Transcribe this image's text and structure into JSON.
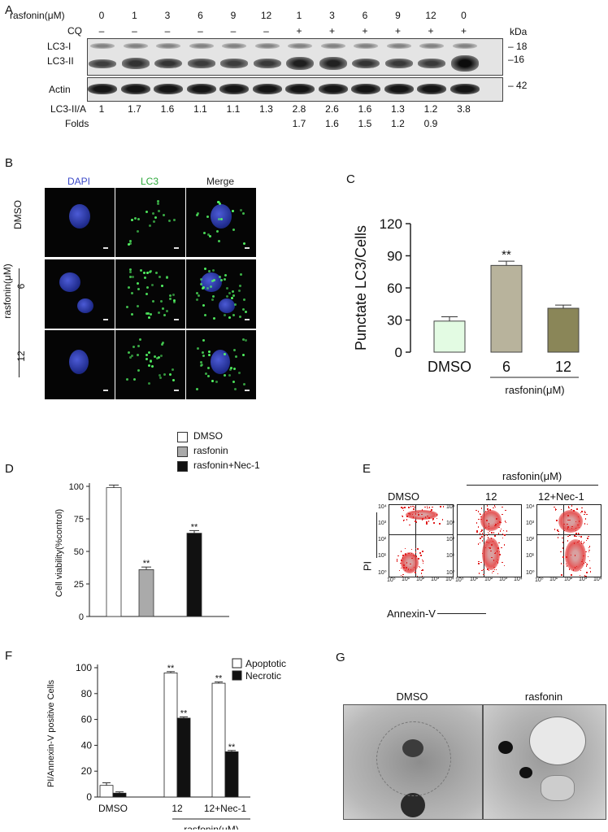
{
  "panels": {
    "a": "A",
    "b": "B",
    "c": "C",
    "d": "D",
    "e": "E",
    "f": "F",
    "g": "G"
  },
  "panelA": {
    "rasfonin_label": "rasfonin(μM)",
    "conc": [
      "0",
      "1",
      "3",
      "6",
      "9",
      "12",
      "1",
      "3",
      "6",
      "9",
      "12",
      "0"
    ],
    "cq_label": "CQ",
    "cq": [
      "–",
      "–",
      "–",
      "–",
      "–",
      "–",
      "+",
      "+",
      "+",
      "+",
      "+",
      "+"
    ],
    "kda_label": "kDa",
    "lc3i_label": "LC3-I",
    "lc3ii_label": "LC3-II",
    "actin_label": "Actin",
    "mw": [
      "18",
      "16",
      "42"
    ],
    "ratio_label": "LC3-II/A",
    "ratios": [
      "1",
      "1.7",
      "1.6",
      "1.1",
      "1.1",
      "1.3",
      "2.8",
      "2.6",
      "1.6",
      "1.3",
      "1.2",
      "3.8"
    ],
    "folds_label": "Folds",
    "folds": [
      "1.7",
      "1.6",
      "1.5",
      "1.2",
      "0.9"
    ]
  },
  "panelB": {
    "cols": [
      "DAPI",
      "LC3",
      "Merge"
    ],
    "rows": [
      "DMSO",
      "6",
      "12"
    ],
    "group_label": "rasfonin(μM)",
    "col_colors": [
      "#3b49c8",
      "#2faa3c",
      "#222222"
    ]
  },
  "panelC": {
    "chart_data": {
      "type": "bar",
      "categories": [
        "DMSO",
        "6",
        "12"
      ],
      "values": [
        29,
        81,
        41
      ],
      "errors": [
        4,
        4,
        3
      ],
      "colors": [
        "#e3fbe3",
        "#b8b39c",
        "#8a8658"
      ],
      "ylabel": "Punctate LC3/Cells",
      "ylim": [
        0,
        120
      ],
      "yticks": [
        "0",
        "30",
        "60",
        "90",
        "120"
      ],
      "significance": [
        "",
        "**",
        ""
      ],
      "group_label": "rasfonin(μM)"
    }
  },
  "panelD": {
    "legend": [
      {
        "label": "DMSO",
        "color": "#ffffff"
      },
      {
        "label": "rasfonin",
        "color": "#aaaaaa"
      },
      {
        "label": "rasfonin+Nec-1",
        "color": "#111111"
      }
    ],
    "chart_data": {
      "type": "bar",
      "categories": [
        "DMSO",
        "rasfonin",
        "rasfonin+Nec-1"
      ],
      "values": [
        99,
        36,
        64
      ],
      "errors": [
        2,
        2,
        2
      ],
      "colors": [
        "#ffffff",
        "#aaaaaa",
        "#111111"
      ],
      "ylabel": "Cell viability(%control)",
      "ylim": [
        0,
        100
      ],
      "yticks": [
        "0",
        "25",
        "50",
        "75",
        "100"
      ],
      "significance": [
        "",
        "**",
        "**"
      ]
    }
  },
  "panelE": {
    "group_label": "rasfonin(μM)",
    "titles": [
      "DMSO",
      "12",
      "12+Nec-1"
    ],
    "ylabel": "PI",
    "xlabel": "Annexin-V",
    "ticks": [
      "10⁰",
      "10¹",
      "10²",
      "10³",
      "10⁴"
    ]
  },
  "panelF": {
    "legend": [
      {
        "label": "Apoptotic",
        "color": "#ffffff"
      },
      {
        "label": "Necrotic",
        "color": "#111111"
      }
    ],
    "chart_data": {
      "type": "bar",
      "categories": [
        "DMSO",
        "12",
        "12+Nec-1"
      ],
      "series": [
        {
          "name": "Apoptotic",
          "values": [
            9,
            96,
            88
          ],
          "errors": [
            2,
            1,
            1
          ]
        },
        {
          "name": "Necrotic",
          "values": [
            3,
            61,
            35
          ],
          "errors": [
            1,
            1,
            1
          ]
        }
      ],
      "ylabel": "PI/Annexin-V positive Cells",
      "ylim": [
        0,
        100
      ],
      "yticks": [
        "0",
        "20",
        "40",
        "60",
        "80",
        "100"
      ],
      "significance": [
        [
          "",
          ""
        ],
        [
          "**",
          "**"
        ],
        [
          "**",
          "**"
        ]
      ],
      "group_label": "rasfonin(μM)"
    }
  },
  "panelG": {
    "labels": [
      "DMSO",
      "rasfonin"
    ]
  }
}
